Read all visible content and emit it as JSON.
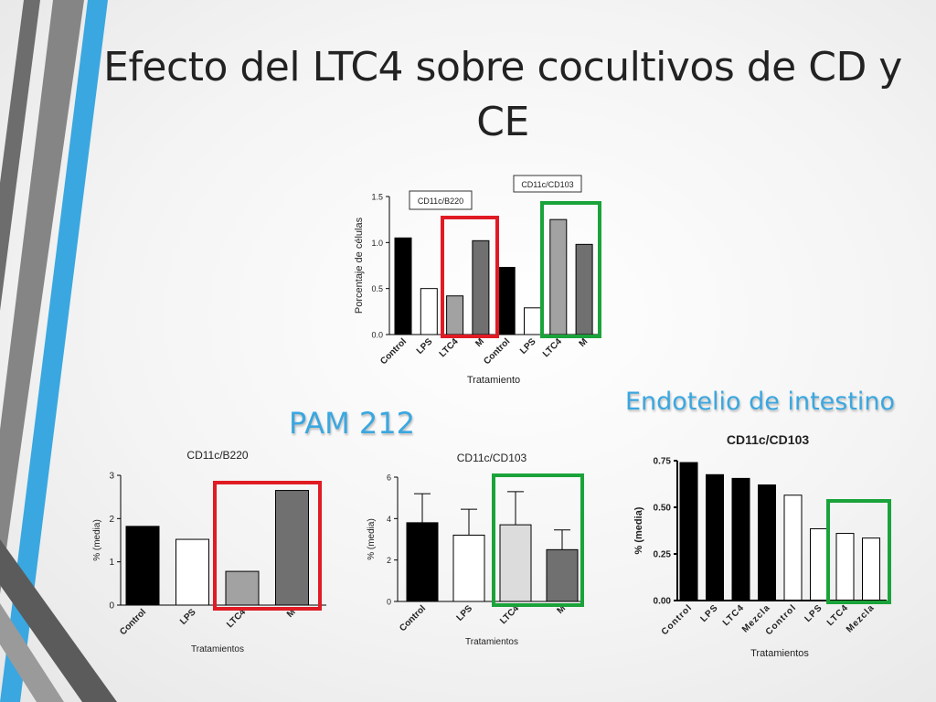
{
  "slide": {
    "title": "Efecto del LTC4 sobre cocultivos de CD y CE",
    "heading_pam": "PAM 212",
    "heading_endotelio": "Endotelio de intestino"
  },
  "colors": {
    "accent_blue": "#3aa7e0",
    "deco_gray": "#6d6d6d",
    "highlight_red": "#e01b24",
    "highlight_green": "#1aa33a"
  },
  "chart_data": [
    {
      "id": "top",
      "type": "bar",
      "title": "",
      "xlabel": "Tratamiento",
      "ylabel": "Porcentaje de células",
      "ylim": [
        0,
        1.5
      ],
      "yticks": [
        "0.0",
        "0.5",
        "1.0",
        "1.5"
      ],
      "categories": [
        "Control",
        "LPS",
        "LTC4",
        "M",
        "Control",
        "LPS",
        "LTC4",
        "M"
      ],
      "values": [
        1.05,
        0.5,
        0.42,
        1.02,
        0.73,
        0.29,
        1.25,
        0.98
      ],
      "fills": [
        "#000000",
        "#ffffff",
        "#a2a2a2",
        "#707070",
        "#000000",
        "#ffffff",
        "#a2a2a2",
        "#707070"
      ],
      "group_labels": [
        "CD11c/B220",
        "CD11c/CD103"
      ]
    },
    {
      "id": "pam_b220",
      "type": "bar",
      "title": "CD11c/B220",
      "xlabel": "Tratamientos",
      "ylabel": "% (media)",
      "ylim": [
        0,
        3
      ],
      "yticks": [
        "0",
        "1",
        "2",
        "3"
      ],
      "categories": [
        "Control",
        "LPS",
        "LTC4",
        "M"
      ],
      "values": [
        1.82,
        1.52,
        0.78,
        2.65
      ],
      "fills": [
        "#000000",
        "#ffffff",
        "#a2a2a2",
        "#707070"
      ]
    },
    {
      "id": "pam_cd103",
      "type": "bar",
      "title": "CD11c/CD103",
      "xlabel": "Tratamientos",
      "ylabel": "% (media)",
      "ylim": [
        0,
        6
      ],
      "yticks": [
        "0",
        "2",
        "4",
        "6"
      ],
      "categories": [
        "Control",
        "LPS",
        "LTC4",
        "M"
      ],
      "values": [
        3.8,
        3.2,
        3.7,
        2.5
      ],
      "errors": [
        1.4,
        1.25,
        1.6,
        0.95
      ],
      "fills": [
        "#000000",
        "#ffffff",
        "#dcdcdc",
        "#707070"
      ]
    },
    {
      "id": "endotelio",
      "type": "bar",
      "title": "CD11c/CD103",
      "xlabel": "Tratamientos",
      "ylabel": "% (media)",
      "ylim": [
        0,
        0.75
      ],
      "yticks": [
        "0.00",
        "0.25",
        "0.50",
        "0.75"
      ],
      "categories": [
        "Control",
        "LPS",
        "LTC4",
        "Mezcla",
        "Control",
        "LPS",
        "LTC4",
        "Mezcla"
      ],
      "values": [
        0.74,
        0.675,
        0.655,
        0.62,
        0.565,
        0.385,
        0.36,
        0.335
      ],
      "fills": [
        "#000000",
        "#000000",
        "#000000",
        "#000000",
        "#ffffff",
        "#ffffff",
        "#ffffff",
        "#ffffff"
      ]
    }
  ]
}
